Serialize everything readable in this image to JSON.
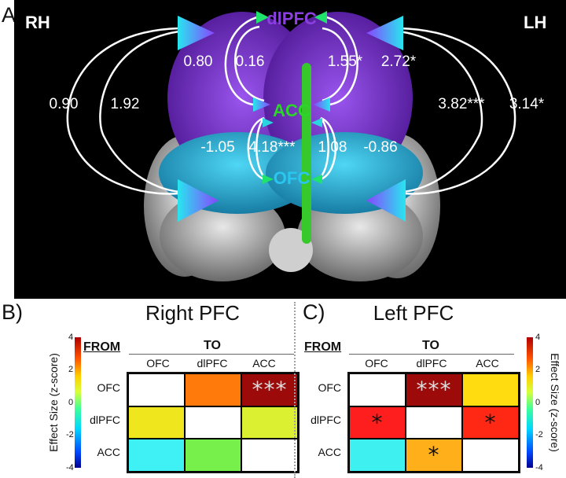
{
  "panel_a": {
    "letter": "A)",
    "hemisphere_right": "RH",
    "hemisphere_left": "LH",
    "regions": {
      "dlpfc": "dlPFC",
      "acc": "ACC",
      "ofc": "OFC"
    },
    "weights": {
      "rh_dlpfc_to_ofc_outer": "0.90",
      "rh_dlpfc_to_ofc_inner": "1.92",
      "rh_dlpfc_acc_outer": "0.80",
      "rh_dlpfc_acc_inner": "0.16",
      "lh_dlpfc_acc_inner": "1.55*",
      "lh_dlpfc_acc_outer": "2.72*",
      "lh_dlpfc_to_ofc_inner": "3.82***",
      "lh_dlpfc_to_ofc_outer": "3.14*",
      "rh_acc_ofc_outer": "-1.05",
      "rh_acc_ofc_inner": "4.18***",
      "lh_acc_ofc_inner": "1.08",
      "lh_acc_ofc_outer": "-0.86"
    },
    "colors": {
      "dlpfc": "#8c3fe0",
      "acc": "#2bd629",
      "ofc": "#2ac6f0"
    }
  },
  "panel_b": {
    "letter": "B)",
    "title": "Right PFC",
    "from_label": "FROM",
    "to_label": "TO",
    "columns": [
      "OFC",
      "dlPFC",
      "ACC"
    ],
    "rows": [
      "OFC",
      "dlPFC",
      "ACC"
    ],
    "cells": [
      [
        {
          "color": "#ffffff",
          "mark": ""
        },
        {
          "color": "#ff7a0a",
          "mark": ""
        },
        {
          "color": "#9c0a0a",
          "mark": "***"
        }
      ],
      [
        {
          "color": "#f0e61e",
          "mark": ""
        },
        {
          "color": "#ffffff",
          "mark": ""
        },
        {
          "color": "#dcf032",
          "mark": ""
        }
      ],
      [
        {
          "color": "#3ff0f5",
          "mark": ""
        },
        {
          "color": "#78f04b",
          "mark": ""
        },
        {
          "color": "#ffffff",
          "mark": ""
        }
      ]
    ],
    "colorbar": {
      "label": "Effect Size (z-score)",
      "ticks": [
        "4",
        "2",
        "0",
        "-2",
        "-4"
      ]
    }
  },
  "panel_c": {
    "letter": "C)",
    "title": "Left PFC",
    "from_label": "FROM",
    "to_label": "TO",
    "columns": [
      "OFC",
      "dlPFC",
      "ACC"
    ],
    "rows": [
      "OFC",
      "dlPFC",
      "ACC"
    ],
    "cells": [
      [
        {
          "color": "#ffffff",
          "mark": ""
        },
        {
          "color": "#9c0a0a",
          "mark": "***"
        },
        {
          "color": "#ffdc0f",
          "mark": ""
        }
      ],
      [
        {
          "color": "#ff1e1e",
          "mark": "*"
        },
        {
          "color": "#ffffff",
          "mark": ""
        },
        {
          "color": "#ff2814",
          "mark": "*"
        }
      ],
      [
        {
          "color": "#3ff0f0",
          "mark": ""
        },
        {
          "color": "#ffaf19",
          "mark": "*"
        },
        {
          "color": "#ffffff",
          "mark": ""
        }
      ]
    ],
    "colorbar": {
      "label": "Effect Size (z-score)",
      "ticks": [
        "4",
        "2",
        "0",
        "-2",
        "-4"
      ]
    }
  }
}
